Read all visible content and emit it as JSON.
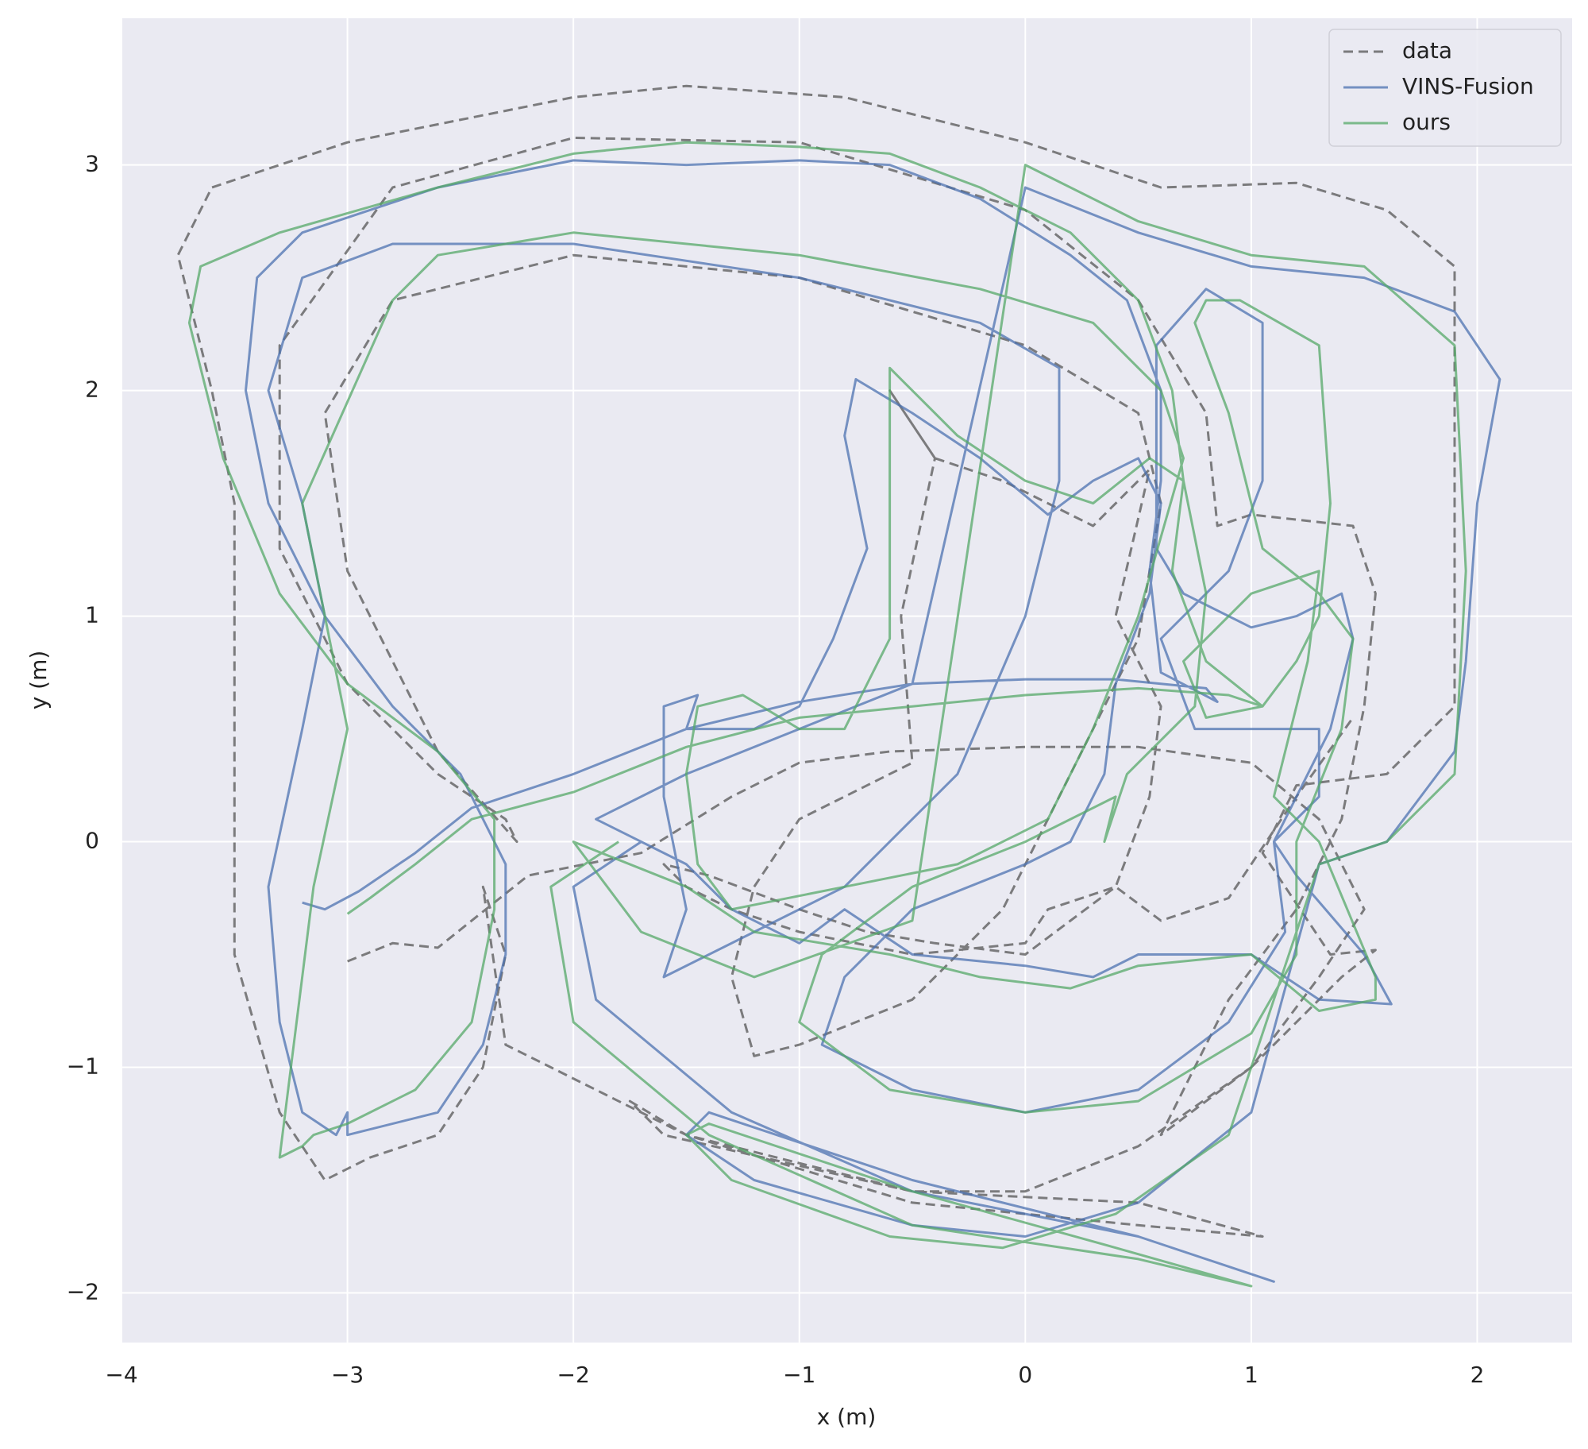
{
  "chart_data": {
    "type": "line",
    "xlabel": "x (m)",
    "ylabel": "y (m)",
    "xlim": [
      -4,
      2.42
    ],
    "ylim": [
      -2.22,
      3.65
    ],
    "xticks": [
      {
        "value": -4,
        "label": "−4"
      },
      {
        "value": -3,
        "label": "−3"
      },
      {
        "value": -2,
        "label": "−2"
      },
      {
        "value": -1,
        "label": "−1"
      },
      0,
      1,
      2
    ],
    "yticks": [
      {
        "value": -2,
        "label": "−2"
      },
      {
        "value": -1,
        "label": "−1"
      },
      0,
      1,
      2,
      3
    ],
    "grid": true,
    "legend": "upper right",
    "series": [
      {
        "name": "data",
        "color": "#555555",
        "linestyle": "dashed",
        "x": [
          -3.0,
          -2.8,
          -2.6,
          -2.2,
          -1.7,
          -1.3,
          -1.0,
          -0.6,
          0.0,
          0.5,
          1.0,
          1.3,
          1.5,
          1.3,
          1.0,
          0.5,
          0.0,
          -0.5,
          -1.5,
          -1.75,
          -1.6,
          -0.5,
          0.5,
          1.05,
          0.5,
          -0.5,
          -1.5,
          -2.3,
          -2.4,
          -2.3,
          -2.4,
          -2.6,
          -2.9,
          -3.1,
          -3.3,
          -3.5,
          -3.5,
          -3.5,
          -3.6,
          -3.75,
          -3.6,
          -3.0,
          -2.0,
          -1.5,
          -0.8,
          0.0,
          0.6,
          1.2,
          1.6,
          1.9,
          1.9,
          1.9,
          1.6,
          1.2,
          1.05,
          1.35,
          1.55,
          1.4,
          1.0,
          0.6,
          0.7,
          0.9,
          1.2,
          1.4,
          1.5,
          1.55,
          1.45,
          1.0,
          0.85,
          0.8,
          0.5,
          0.0,
          -1.0,
          -2.0,
          -2.8,
          -3.3,
          -3.3,
          -3.0,
          -2.6,
          -2.3,
          -2.25,
          -2.6,
          -3.0,
          -3.1,
          -2.8,
          -2.0,
          -1.0,
          0.0,
          0.5,
          0.6,
          0.5,
          0.2,
          -0.1,
          -0.5,
          -1.0,
          -1.2,
          -1.3,
          -1.2,
          -1.0,
          -0.5,
          -0.55,
          -0.4,
          -0.6,
          -0.4,
          -0.1,
          0.3,
          0.55,
          0.4,
          0.6,
          0.55,
          0.4,
          0.1,
          0.0,
          -0.5,
          -1.0,
          -1.3,
          -1.5,
          -1.6,
          -1.4,
          -1.0,
          -0.7,
          -0.4,
          0.0,
          0.4,
          0.6,
          0.9,
          1.2,
          1.45
        ],
        "values": [
          -0.53,
          -0.45,
          -0.47,
          -0.15,
          -0.05,
          0.2,
          0.35,
          0.4,
          0.42,
          0.42,
          0.35,
          0.1,
          -0.3,
          -0.6,
          -1.0,
          -1.35,
          -1.55,
          -1.55,
          -1.3,
          -1.15,
          -1.3,
          -1.55,
          -1.6,
          -1.75,
          -1.7,
          -1.6,
          -1.3,
          -0.9,
          -0.2,
          -0.5,
          -1.0,
          -1.3,
          -1.4,
          -1.5,
          -1.2,
          -0.5,
          0.5,
          1.5,
          2.0,
          2.6,
          2.9,
          3.1,
          3.3,
          3.35,
          3.3,
          3.1,
          2.9,
          2.92,
          2.8,
          2.55,
          1.5,
          0.6,
          0.3,
          0.25,
          -0.05,
          -0.5,
          -0.48,
          -0.6,
          -1.0,
          -1.3,
          -1.1,
          -0.7,
          -0.3,
          0.1,
          0.6,
          1.1,
          1.4,
          1.45,
          1.4,
          1.9,
          2.4,
          2.8,
          3.1,
          3.12,
          2.9,
          2.2,
          1.3,
          0.7,
          0.3,
          0.1,
          0.0,
          0.4,
          1.2,
          1.9,
          2.4,
          2.6,
          2.5,
          2.2,
          1.9,
          1.5,
          0.9,
          0.3,
          -0.3,
          -0.7,
          -0.9,
          -0.95,
          -0.6,
          -0.2,
          0.1,
          0.35,
          1.0,
          1.7,
          2.0,
          1.7,
          1.6,
          1.4,
          1.65,
          1.0,
          0.6,
          0.2,
          -0.2,
          -0.3,
          -0.45,
          -0.5,
          -0.4,
          -0.3,
          -0.2,
          -0.1,
          -0.15,
          -0.3,
          -0.4,
          -0.45,
          -0.5,
          -0.2,
          -0.35,
          -0.25,
          0.2,
          0.55
        ]
      },
      {
        "name": "VINS-Fusion",
        "color": "#4c72b0",
        "linestyle": "solid",
        "x": [
          -3.2,
          -3.1,
          -2.95,
          -2.7,
          -2.45,
          -2.0,
          -1.5,
          -1.0,
          -0.5,
          0.0,
          0.4,
          0.8,
          0.85,
          0.6,
          0.55,
          0.6,
          0.6,
          0.45,
          0.2,
          -0.2,
          -0.6,
          -1.0,
          -1.5,
          -2.0,
          -2.6,
          -3.2,
          -3.4,
          -3.45,
          -3.35,
          -3.1,
          -2.8,
          -2.5,
          -2.3,
          -2.3,
          -2.4,
          -2.6,
          -3.0,
          -3.0,
          -3.05,
          -3.2,
          -3.3,
          -3.35,
          -3.2,
          -3.1,
          -3.2,
          -3.35,
          -3.2,
          -2.8,
          -2.0,
          -1.0,
          -0.2,
          0.15,
          0.15,
          0.0,
          -0.3,
          -0.8,
          -1.2,
          -1.6,
          -1.5,
          -1.6,
          -1.6,
          -1.45,
          -1.5,
          -1.2,
          -1.0,
          -0.85,
          -0.7,
          -0.8,
          -0.75,
          -0.5,
          -0.2,
          0.1,
          0.3,
          0.5,
          0.6,
          0.55,
          0.4,
          0.35,
          0.2,
          0.0,
          -0.5,
          -0.8,
          -0.9,
          -0.5,
          0.0,
          0.5,
          0.9,
          1.15,
          1.1,
          1.35,
          1.45,
          1.4,
          1.2,
          1.0,
          0.7,
          0.58,
          0.58,
          0.8,
          1.05,
          1.05,
          0.9,
          0.6,
          0.75,
          1.1,
          1.3,
          1.3,
          1.1,
          1.2,
          1.5,
          1.62,
          1.3,
          1.0,
          0.5,
          0.3,
          0.0,
          -0.5,
          -0.8,
          -1.0,
          -1.3,
          -1.5,
          -1.9,
          -1.5,
          -1.0,
          -0.5,
          0.0,
          0.5,
          1.0,
          1.5,
          1.9,
          2.1,
          2.0,
          1.95,
          1.9,
          1.6,
          1.3,
          1.0,
          0.5,
          0.0,
          -0.5,
          -1.2,
          -1.5,
          -1.4,
          -0.5,
          0.5,
          1.1,
          0.5,
          -0.5,
          -1.3,
          -1.9,
          -2.0,
          -1.7
        ],
        "values": [
          -0.27,
          -0.3,
          -0.22,
          -0.05,
          0.15,
          0.3,
          0.5,
          0.62,
          0.7,
          0.72,
          0.72,
          0.68,
          0.62,
          0.75,
          1.2,
          1.6,
          2.0,
          2.4,
          2.6,
          2.85,
          3.0,
          3.02,
          3.0,
          3.02,
          2.9,
          2.7,
          2.5,
          2.0,
          1.5,
          1.0,
          0.6,
          0.3,
          -0.1,
          -0.5,
          -0.9,
          -1.2,
          -1.3,
          -1.2,
          -1.3,
          -1.2,
          -0.8,
          -0.2,
          0.5,
          1.0,
          1.5,
          2.0,
          2.5,
          2.65,
          2.65,
          2.5,
          2.3,
          2.1,
          1.6,
          1.0,
          0.3,
          -0.2,
          -0.4,
          -0.6,
          -0.3,
          0.2,
          0.6,
          0.65,
          0.5,
          0.5,
          0.6,
          0.9,
          1.3,
          1.8,
          2.05,
          1.9,
          1.7,
          1.45,
          1.6,
          1.7,
          1.5,
          1.1,
          0.7,
          0.3,
          0.0,
          -0.1,
          -0.3,
          -0.6,
          -0.9,
          -1.1,
          -1.2,
          -1.1,
          -0.8,
          -0.4,
          0.0,
          0.5,
          0.9,
          1.1,
          1.0,
          0.95,
          1.1,
          1.3,
          2.2,
          2.45,
          2.3,
          1.6,
          1.2,
          0.9,
          0.5,
          0.5,
          0.5,
          0.2,
          0.0,
          -0.15,
          -0.5,
          -0.72,
          -0.7,
          -0.5,
          -0.5,
          -0.6,
          -0.55,
          -0.5,
          -0.3,
          -0.45,
          -0.3,
          -0.1,
          0.1,
          0.3,
          0.5,
          0.7,
          2.9,
          2.7,
          2.55,
          2.5,
          2.35,
          2.05,
          1.5,
          0.8,
          0.4,
          0.0,
          -0.1,
          -1.2,
          -1.6,
          -1.75,
          -1.7,
          -1.5,
          -1.3,
          -1.2,
          -1.5,
          -1.75,
          -1.95,
          -1.75,
          -1.55,
          -1.2,
          -0.7,
          -0.2,
          0.0
        ]
      },
      {
        "name": "ours",
        "color": "#55a868",
        "linestyle": "solid",
        "x": [
          -3.0,
          -2.9,
          -2.7,
          -2.45,
          -2.0,
          -1.5,
          -1.0,
          -0.5,
          0.0,
          0.5,
          0.9,
          1.05,
          0.8,
          0.65,
          0.7,
          0.65,
          0.5,
          0.2,
          -0.2,
          -0.6,
          -1.0,
          -1.5,
          -2.0,
          -2.6,
          -3.3,
          -3.65,
          -3.7,
          -3.55,
          -3.3,
          -3.0,
          -2.6,
          -2.35,
          -2.35,
          -2.45,
          -2.7,
          -3.0,
          -3.15,
          -3.2,
          -3.3,
          -3.25,
          -3.15,
          -3.0,
          -3.2,
          -2.8,
          -2.6,
          -2.0,
          -1.0,
          -0.2,
          0.3,
          0.6,
          0.7,
          0.5,
          0.3,
          0.1,
          -0.3,
          -0.8,
          -1.3,
          -1.45,
          -1.5,
          -1.45,
          -1.25,
          -1.0,
          -0.8,
          -0.6,
          -0.6,
          -0.6,
          -0.55,
          -0.3,
          0.0,
          0.3,
          0.55,
          0.7,
          0.8,
          0.75,
          0.45,
          0.35,
          0.4,
          0.0,
          -0.5,
          -0.9,
          -1.0,
          -0.6,
          0.0,
          0.5,
          1.0,
          1.2,
          1.2,
          1.4,
          1.45,
          1.3,
          1.05,
          0.9,
          0.75,
          0.8,
          0.95,
          1.3,
          1.35,
          1.3,
          1.2,
          1.05,
          0.8,
          0.7,
          1.0,
          1.3,
          1.25,
          1.1,
          1.3,
          1.55,
          1.55,
          1.3,
          1.0,
          0.5,
          0.2,
          -0.2,
          -0.6,
          -0.9,
          -1.2,
          -1.5,
          -2.0,
          -1.7,
          -1.2,
          -0.5,
          0.0,
          0.5,
          1.0,
          1.5,
          1.9,
          1.95,
          1.9,
          1.6,
          1.3,
          0.9,
          0.4,
          -0.1,
          -0.6,
          -1.3,
          -1.5,
          -1.4,
          -0.5,
          0.4,
          1.0,
          0.5,
          -0.5,
          -1.4,
          -2.0,
          -2.1,
          -1.8
        ],
        "values": [
          -0.32,
          -0.25,
          -0.1,
          0.1,
          0.22,
          0.42,
          0.55,
          0.6,
          0.65,
          0.68,
          0.65,
          0.6,
          0.8,
          1.2,
          1.6,
          2.0,
          2.4,
          2.7,
          2.9,
          3.05,
          3.08,
          3.1,
          3.05,
          2.9,
          2.7,
          2.55,
          2.3,
          1.7,
          1.1,
          0.7,
          0.4,
          0.1,
          -0.3,
          -0.8,
          -1.1,
          -1.25,
          -1.3,
          -1.35,
          -1.4,
          -1.0,
          -0.2,
          0.5,
          1.5,
          2.4,
          2.6,
          2.7,
          2.6,
          2.45,
          2.3,
          2.0,
          1.7,
          1.0,
          0.5,
          0.1,
          -0.1,
          -0.2,
          -0.3,
          -0.1,
          0.3,
          0.6,
          0.65,
          0.5,
          0.5,
          0.9,
          1.5,
          2.1,
          2.05,
          1.8,
          1.6,
          1.5,
          1.7,
          1.6,
          1.1,
          0.6,
          0.3,
          0.0,
          0.2,
          0.0,
          -0.2,
          -0.5,
          -0.8,
          -1.1,
          -1.2,
          -1.15,
          -0.85,
          -0.5,
          0.0,
          0.5,
          0.9,
          1.1,
          1.3,
          1.9,
          2.3,
          2.4,
          2.4,
          2.2,
          1.5,
          1.0,
          0.8,
          0.6,
          0.55,
          0.8,
          1.1,
          1.2,
          0.8,
          0.2,
          0.0,
          -0.6,
          -0.7,
          -0.75,
          -0.5,
          -0.55,
          -0.65,
          -0.6,
          -0.5,
          -0.45,
          -0.4,
          -0.2,
          0.0,
          -0.4,
          -0.6,
          -0.35,
          3.0,
          2.75,
          2.6,
          2.55,
          2.2,
          1.2,
          0.3,
          0.0,
          -0.1,
          -1.3,
          -1.65,
          -1.8,
          -1.75,
          -1.5,
          -1.3,
          -1.25,
          -1.55,
          -1.8,
          -1.97,
          -1.85,
          -1.7,
          -1.3,
          -0.8,
          -0.2,
          0.0
        ]
      }
    ]
  }
}
